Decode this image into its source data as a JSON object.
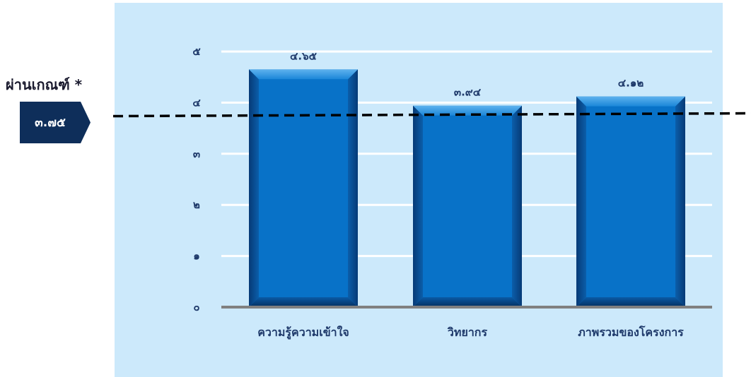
{
  "chart_data": {
    "type": "bar",
    "categories": [
      "ความรู้ความเข้าใจ",
      "วิทยากร",
      "ภาพรวมของโครงการ"
    ],
    "values": [
      4.65,
      3.94,
      4.12
    ],
    "value_labels": [
      "๔.๖๕",
      "๓.๙๔",
      "๔.๑๒"
    ],
    "ylim": [
      0,
      5
    ],
    "yticks": [
      0,
      1,
      2,
      3,
      4,
      5
    ],
    "ytick_labels": [
      "๐",
      "๑",
      "๒",
      "๓",
      "๔",
      "๕"
    ],
    "grid": true,
    "threshold": {
      "value": 3.75,
      "title": "ผ่านเกณฑ์ *",
      "label": "๓.๗๕"
    }
  },
  "colors": {
    "plot_background": "#cce9fb",
    "bar": "#0872c8",
    "bar_dark": "#073e7d",
    "axis": "#808080",
    "gridline": "#ffffff",
    "badge": "#0e2e5a",
    "threshold_line": "#000000"
  }
}
